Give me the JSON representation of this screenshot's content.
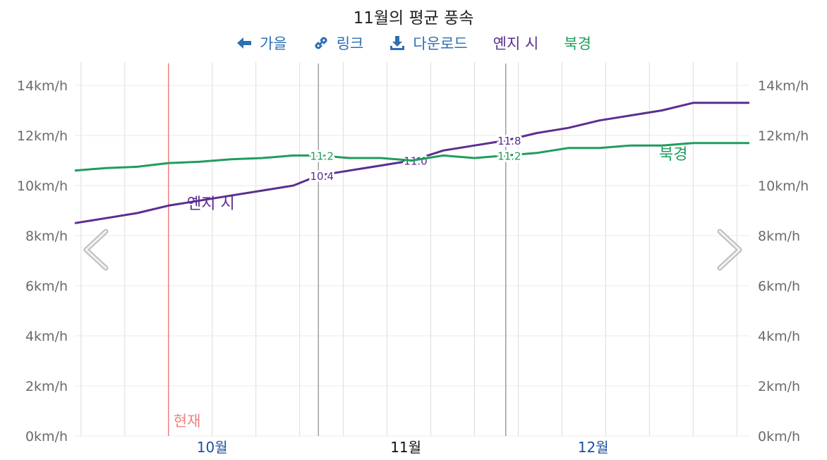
{
  "header": {
    "title": "11월의 평균 풍속",
    "toolbar": {
      "prev_label": "가을",
      "link_label": "링크",
      "download_label": "다운로드"
    }
  },
  "legend": [
    {
      "label": "옌지 시",
      "color": "#5b2e91"
    },
    {
      "label": "북경",
      "color": "#1f9d5c"
    }
  ],
  "colors": {
    "accent": "#2e6fb3",
    "now_line": "#f08080",
    "grid": "#dddddd"
  },
  "icons": [
    "arrow-left-icon",
    "link-icon",
    "download-icon",
    "chevron-left-icon",
    "chevron-right-icon"
  ],
  "chart_data": {
    "type": "line",
    "title": "11월의 평균 풍속",
    "y_unit": "km/h",
    "ylim": [
      0,
      14
    ],
    "y_ticks": [
      "0km/h",
      "2km/h",
      "4km/h",
      "6km/h",
      "8km/h",
      "10km/h",
      "12km/h",
      "14km/h"
    ],
    "x_range": [
      "2023-09-23",
      "2024-01-09"
    ],
    "month_labels": [
      {
        "label": "10월",
        "date": "2023-10-01",
        "highlight": false
      },
      {
        "label": "11월",
        "date": "2023-11-01",
        "highlight": true
      },
      {
        "label": "12월",
        "date": "2023-12-01",
        "highlight": false
      }
    ],
    "now_marker": {
      "label": "현재",
      "date": "2023-10-08"
    },
    "series": [
      {
        "name": "옌지 시",
        "color": "#5b2e91",
        "points": [
          [
            "2023-09-23",
            8.5
          ],
          [
            "2023-09-28",
            8.7
          ],
          [
            "2023-10-03",
            8.9
          ],
          [
            "2023-10-08",
            9.2
          ],
          [
            "2023-10-13",
            9.4
          ],
          [
            "2023-10-18",
            9.6
          ],
          [
            "2023-10-23",
            9.8
          ],
          [
            "2023-10-28",
            10.0
          ],
          [
            "2023-11-01",
            10.4
          ],
          [
            "2023-11-06",
            10.6
          ],
          [
            "2023-11-11",
            10.8
          ],
          [
            "2023-11-16",
            11.0
          ],
          [
            "2023-11-21",
            11.4
          ],
          [
            "2023-11-26",
            11.6
          ],
          [
            "2023-12-01",
            11.8
          ],
          [
            "2023-12-06",
            12.1
          ],
          [
            "2023-12-11",
            12.3
          ],
          [
            "2023-12-16",
            12.6
          ],
          [
            "2023-12-21",
            12.8
          ],
          [
            "2023-12-26",
            13.0
          ],
          [
            "2023-12-31",
            13.3
          ],
          [
            "2024-01-05",
            13.3
          ],
          [
            "2024-01-09",
            13.3
          ]
        ],
        "labels": [
          {
            "date": "2023-11-01",
            "text": "10.4"
          },
          {
            "date": "2023-11-16",
            "text": "11.0"
          },
          {
            "date": "2023-12-01",
            "text": "11.8"
          }
        ]
      },
      {
        "name": "북경",
        "color": "#1f9d5c",
        "points": [
          [
            "2023-09-23",
            10.6
          ],
          [
            "2023-09-28",
            10.7
          ],
          [
            "2023-10-03",
            10.75
          ],
          [
            "2023-10-08",
            10.9
          ],
          [
            "2023-10-13",
            10.95
          ],
          [
            "2023-10-18",
            11.05
          ],
          [
            "2023-10-23",
            11.1
          ],
          [
            "2023-10-28",
            11.2
          ],
          [
            "2023-11-01",
            11.2
          ],
          [
            "2023-11-06",
            11.1
          ],
          [
            "2023-11-11",
            11.1
          ],
          [
            "2023-11-16",
            11.0
          ],
          [
            "2023-11-21",
            11.2
          ],
          [
            "2023-11-26",
            11.1
          ],
          [
            "2023-12-01",
            11.2
          ],
          [
            "2023-12-06",
            11.3
          ],
          [
            "2023-12-11",
            11.5
          ],
          [
            "2023-12-16",
            11.5
          ],
          [
            "2023-12-21",
            11.6
          ],
          [
            "2023-12-26",
            11.6
          ],
          [
            "2023-12-31",
            11.7
          ],
          [
            "2024-01-05",
            11.7
          ],
          [
            "2024-01-09",
            11.7
          ]
        ],
        "labels": [
          {
            "date": "2023-11-01",
            "text": "11.2"
          },
          {
            "date": "2023-12-01",
            "text": "11.2"
          }
        ]
      }
    ],
    "grid": true
  }
}
